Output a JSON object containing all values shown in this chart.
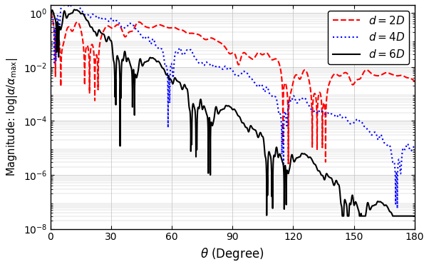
{
  "title": "",
  "xlabel": "$\\theta$ (Degree)",
  "ylabel": "Magnitude: $\\log|\\alpha/\\alpha_{\\max}|$",
  "xlim": [
    0,
    180
  ],
  "ylim_log": [
    1e-08,
    2
  ],
  "yticks": [
    1e-08,
    1e-06,
    0.0001,
    0.01,
    1.0
  ],
  "xticks": [
    0,
    30,
    60,
    90,
    120,
    150,
    180
  ],
  "legend_labels": [
    "$d = 2D$",
    "$d = 4D$",
    "$d = 6D$"
  ],
  "colors": [
    "#ff0000",
    "#0000ff",
    "#000000"
  ],
  "linestyles": [
    "--",
    ":",
    "-"
  ],
  "linewidths": [
    1.5,
    1.5,
    1.5
  ],
  "d_values": [
    2,
    4,
    6
  ],
  "grid_color": "#c0c0c0",
  "background_color": "#ffffff"
}
